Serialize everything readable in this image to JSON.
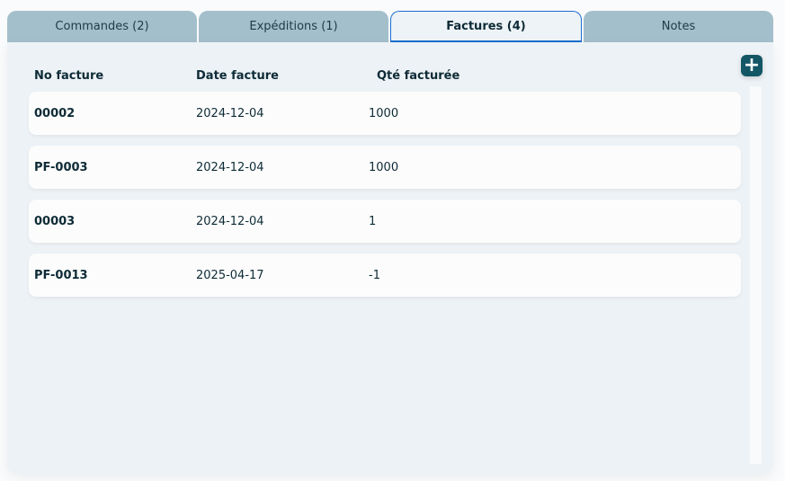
{
  "tabs": [
    {
      "label": "Commandes (2)"
    },
    {
      "label": "Expéditions (1)"
    },
    {
      "label": "Factures (4)",
      "active": true
    },
    {
      "label": "Notes"
    }
  ],
  "table": {
    "headers": [
      "No facture",
      "Date facture",
      "Qté facturée"
    ],
    "rows": [
      [
        "00002",
        "2024-12-04",
        "1000"
      ],
      [
        "PF-0003",
        "2024-12-04",
        "1000"
      ],
      [
        "00003",
        "2024-12-04",
        "1"
      ],
      [
        "PF-0013",
        "2025-04-17",
        "-1"
      ]
    ]
  },
  "add_icon": "plus-icon",
  "colors": {
    "accent": "#1a6fd1",
    "button": "#135766",
    "tab": "#a4bfcc"
  }
}
